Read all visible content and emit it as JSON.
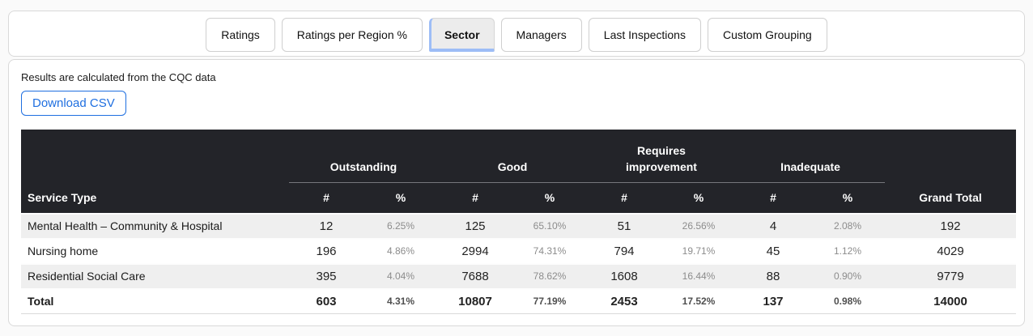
{
  "tabs": [
    "Ratings",
    "Ratings per Region %",
    "Sector",
    "Managers",
    "Last Inspections",
    "Custom Grouping"
  ],
  "active_tab": "Sector",
  "toolbar": {
    "note": "Results are calculated from the CQC data",
    "download_csv_label": "Download CSV"
  },
  "colors": {
    "accent_blue": "#1f6fe0",
    "active_tab_underline": "#9dbdf6",
    "table_header_bg": "#232429",
    "row_stripe_bg": "#efefef"
  },
  "table": {
    "first_col_header": "Service Type",
    "groups": [
      "Outstanding",
      "Good",
      "Requires improvement",
      "Inadequate"
    ],
    "sub_cols": [
      "#",
      "%"
    ],
    "last_col_header": "Grand Total",
    "rows": [
      {
        "service": "Mental Health – Community & Hospital",
        "cells": [
          "12",
          "6.25%",
          "125",
          "65.10%",
          "51",
          "26.56%",
          "4",
          "2.08%",
          "192"
        ]
      },
      {
        "service": "Nursing home",
        "cells": [
          "196",
          "4.86%",
          "2994",
          "74.31%",
          "794",
          "19.71%",
          "45",
          "1.12%",
          "4029"
        ]
      },
      {
        "service": "Residential Social Care",
        "cells": [
          "395",
          "4.04%",
          "7688",
          "78.62%",
          "1608",
          "16.44%",
          "88",
          "0.90%",
          "9779"
        ]
      }
    ],
    "total_row": {
      "service": "Total",
      "cells": [
        "603",
        "4.31%",
        "10807",
        "77.19%",
        "2453",
        "17.52%",
        "137",
        "0.98%",
        "14000"
      ]
    }
  }
}
